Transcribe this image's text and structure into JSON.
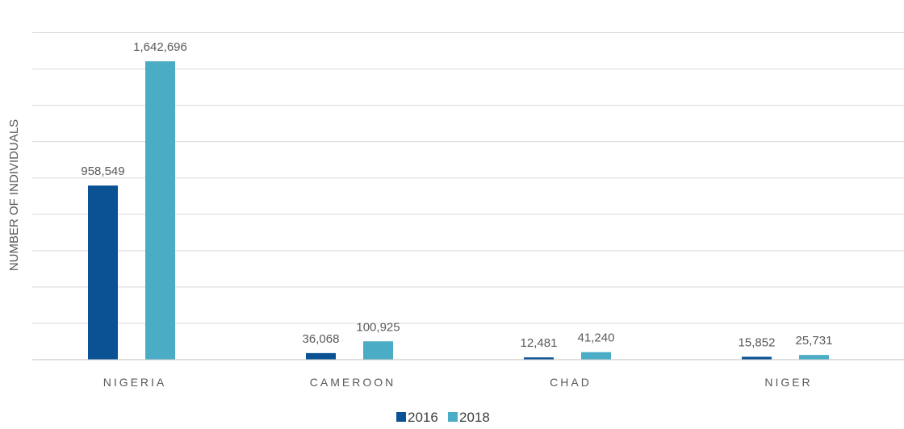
{
  "chart_data": {
    "type": "bar",
    "ylabel": "NUMBER OF INDIVIDUALS",
    "categories": [
      "NIGERIA",
      "CAMEROON",
      "CHAD",
      "NIGER"
    ],
    "series": [
      {
        "name": "2016",
        "color": "#0a5294",
        "values": [
          958549,
          36068,
          12481,
          15852
        ],
        "labels": [
          "958,549",
          "36,068",
          "12,481",
          "15,852"
        ]
      },
      {
        "name": "2018",
        "color": "#4bacc6",
        "values": [
          1642696,
          100925,
          41240,
          25731
        ],
        "labels": [
          "1,642,696",
          "100,925",
          "41,240",
          "25,731"
        ]
      }
    ],
    "ylim": [
      0,
      1900000
    ],
    "grid_step": 200000,
    "grid": true,
    "legend_position": "bottom"
  }
}
